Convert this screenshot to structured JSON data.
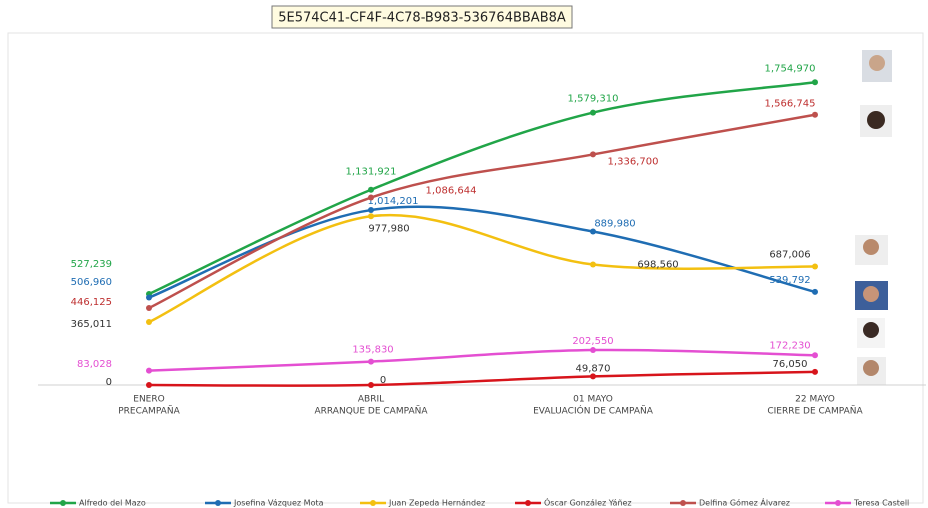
{
  "header_id": "5E574C41-CF4F-4C78-B983-536764BBAB8A",
  "chart_data": {
    "type": "line",
    "smooth": true,
    "categories": [
      [
        "ENERO",
        "PRECAMPAÑA"
      ],
      [
        "ABRIL",
        "ARRANQUE DE CAMPAÑA"
      ],
      [
        "01 MAYO",
        "EVALUACIÓN DE CAMPAÑA"
      ],
      [
        "22 MAYO",
        "CIERRE DE CAMPAÑA"
      ]
    ],
    "ylim": [
      0,
      2000000
    ],
    "legend": "bottom",
    "series": [
      {
        "name": "Alfredo del Mazo",
        "color": "#21a548",
        "label_color": "#21a548",
        "values": [
          527239,
          1131921,
          1579310,
          1754970
        ],
        "value_labels": [
          "527,239",
          "1,131,921",
          "1,579,310",
          "1,754,970"
        ]
      },
      {
        "name": "Josefina Vázquez Mota",
        "color": "#1f6db3",
        "label_color": "#1f6db3",
        "values": [
          506960,
          1014201,
          889980,
          539792
        ],
        "value_labels": [
          "506,960",
          "1,014,201",
          "889,980",
          "539,792"
        ]
      },
      {
        "name": "Juan Zepeda Hernández",
        "color": "#f3c011",
        "label_color": "#333333",
        "values": [
          365011,
          977980,
          698560,
          687006
        ],
        "value_labels": [
          "365,011",
          "977,980",
          "698,560",
          "687,006"
        ]
      },
      {
        "name": "Óscar González Yáñez",
        "color": "#d7141b",
        "label_color": "#333333",
        "values": [
          0,
          0,
          49870,
          76050
        ],
        "value_labels": [
          "0",
          "0",
          "49,870",
          "76,050"
        ]
      },
      {
        "name": "Delfina Gómez Álvarez",
        "color": "#be504d",
        "label_color": "#be2f2f",
        "values": [
          446125,
          1086644,
          1336700,
          1566745
        ],
        "value_labels": [
          "446,125",
          "1,086,644",
          "1,336,700",
          "1,566,745"
        ]
      },
      {
        "name": "Teresa Castell",
        "color": "#e44fd2",
        "label_color": "#e44fd2",
        "values": [
          83028,
          135830,
          202550,
          172230
        ],
        "value_labels": [
          "83,028",
          "135,830",
          "202,550",
          "172,230"
        ]
      }
    ]
  }
}
